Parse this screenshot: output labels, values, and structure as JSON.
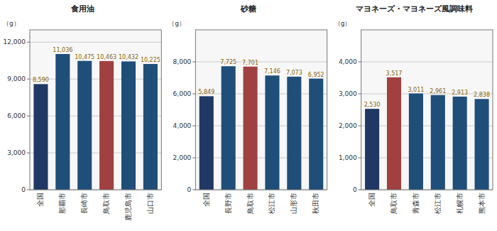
{
  "chart_data": [
    {
      "type": "bar",
      "title": "食用油",
      "y_label": "（g）",
      "categories": [
        "全国",
        "那覇市",
        "長崎市",
        "鳥取市",
        "鹿児島市",
        "山口市"
      ],
      "values": [
        8590,
        11036,
        10475,
        10463,
        10432,
        10225
      ],
      "colors": [
        "#1f3864",
        "#1f4e79",
        "#1f4e79",
        "#a04040",
        "#1f4e79",
        "#1f4e79"
      ],
      "ylim": [
        0,
        13000
      ],
      "yticks": [
        0,
        {
          "value": 3000,
          "label": "3,000"
        },
        {
          "value": 6000,
          "label": "6,000"
        },
        {
          "value": 9000,
          "label": "9,000"
        },
        {
          "value": 12000,
          "label": "12,000"
        }
      ],
      "value_labels": [
        "8,590",
        "11,036",
        "10,475",
        "10,463",
        "10,432",
        "10,225"
      ],
      "data_labels": true,
      "grid": true
    },
    {
      "type": "bar",
      "title": "砂糖",
      "y_label": "（g）",
      "categories": [
        "全国",
        "長野市",
        "鳥取市",
        "松江市",
        "山形市",
        "秋田市"
      ],
      "values": [
        5849,
        7725,
        7701,
        7146,
        7073,
        6952
      ],
      "colors": [
        "#1f3864",
        "#1f4e79",
        "#a04040",
        "#1f4e79",
        "#1f4e79",
        "#1f4e79"
      ],
      "ylim": [
        0,
        10000
      ],
      "yticks": [
        0,
        {
          "value": 2000,
          "label": "2,000"
        },
        {
          "value": 4000,
          "label": "4,000"
        },
        {
          "value": 6000,
          "label": "6,000"
        },
        {
          "value": 8000,
          "label": "8,000"
        }
      ],
      "value_labels": [
        "5,849",
        "7,725",
        "7,701",
        "7,146",
        "7,073",
        "6,952"
      ],
      "data_labels": true,
      "grid": true
    },
    {
      "type": "bar",
      "title": "マヨネーズ・マヨネーズ風調味料",
      "y_label": "（g）",
      "categories": [
        "全国",
        "鳥取市",
        "青森市",
        "松江市",
        "札幌市",
        "熊本市"
      ],
      "values": [
        2530,
        3517,
        3011,
        2961,
        2913,
        2838
      ],
      "colors": [
        "#1f3864",
        "#a04040",
        "#1f4e79",
        "#1f4e79",
        "#1f4e79",
        "#1f4e79"
      ],
      "ylim": [
        0,
        5000
      ],
      "yticks": [
        0,
        {
          "value": 1000,
          "label": "1,000"
        },
        {
          "value": 2000,
          "label": "2,000"
        },
        {
          "value": 3000,
          "label": "3,000"
        },
        {
          "value": 4000,
          "label": "4,000"
        }
      ],
      "value_labels": [
        "2,530",
        "3,517",
        "3,011",
        "2,961",
        "2,913",
        "2,838"
      ],
      "data_labels": true,
      "grid": true
    }
  ]
}
